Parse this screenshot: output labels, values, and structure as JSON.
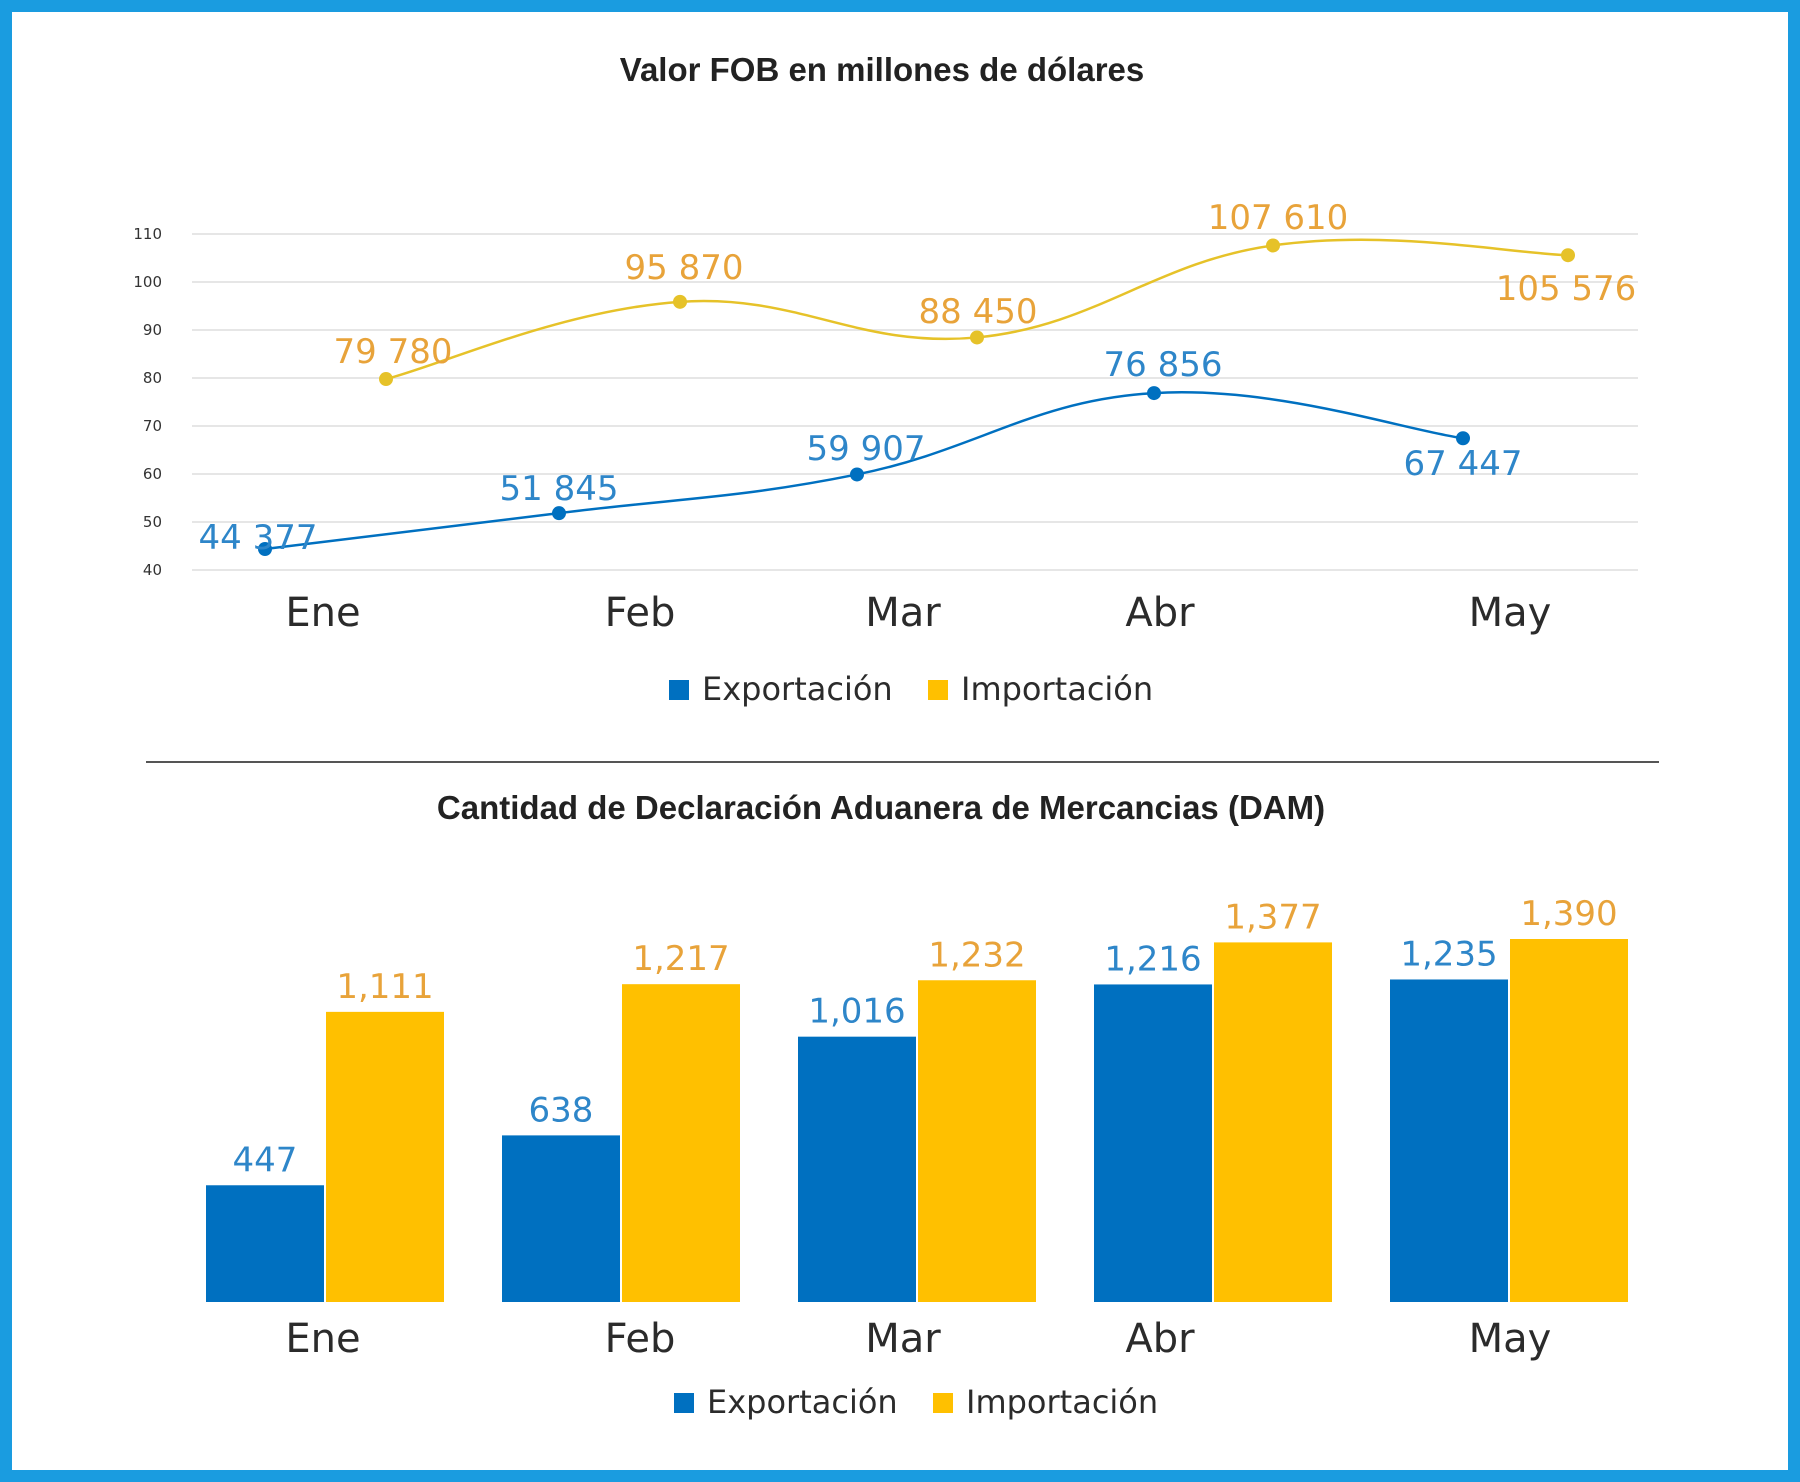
{
  "colors": {
    "frame": "#1a9ce0",
    "export": "#0070c0",
    "import": "#ffc000",
    "import_line": "#e6c229",
    "import_label": "#e8a33a",
    "export_label": "#2e86c9",
    "grid": "#e6e6e6",
    "divider": "#555555"
  },
  "legend": {
    "export": "Exportación",
    "import": "Importación"
  },
  "chart_data": [
    {
      "type": "line",
      "title": "Valor FOB en millones de dólares",
      "xlabel": "",
      "ylabel": "",
      "ylim": [
        40,
        110
      ],
      "yticks": [
        "40",
        "50",
        "60",
        "70",
        "80",
        "90",
        "100",
        "110"
      ],
      "categories": [
        "Ene",
        "Feb",
        "Mar",
        "Abr",
        "May"
      ],
      "grid": true,
      "legend_position": "bottom",
      "series": [
        {
          "name": "Exportación",
          "values": [
            44.377,
            51.845,
            59.907,
            76.856,
            67.447
          ],
          "labels": [
            "44 377",
            "51 845",
            "59 907",
            "76 856",
            "67 447"
          ]
        },
        {
          "name": "Importación",
          "values": [
            79.78,
            95.87,
            88.45,
            107.61,
            105.576
          ],
          "labels": [
            "79 780",
            "95 870",
            "88 450",
            "107 610",
            "105 576"
          ]
        }
      ]
    },
    {
      "type": "bar",
      "title": "Cantidad de Declaración Aduanera de Mercancias (DAM)",
      "xlabel": "",
      "ylabel": "",
      "categories": [
        "Ene",
        "Feb",
        "Mar",
        "Abr",
        "May"
      ],
      "legend_position": "bottom",
      "series": [
        {
          "name": "Exportación",
          "values": [
            447,
            638,
            1016,
            1216,
            1235
          ],
          "labels": [
            "447",
            "638",
            "1,016",
            "1,216",
            "1,235"
          ]
        },
        {
          "name": "Importación",
          "values": [
            1111,
            1217,
            1232,
            1377,
            1390
          ],
          "labels": [
            "1,111",
            "1,217",
            "1,232",
            "1,377",
            "1,390"
          ]
        }
      ]
    }
  ]
}
